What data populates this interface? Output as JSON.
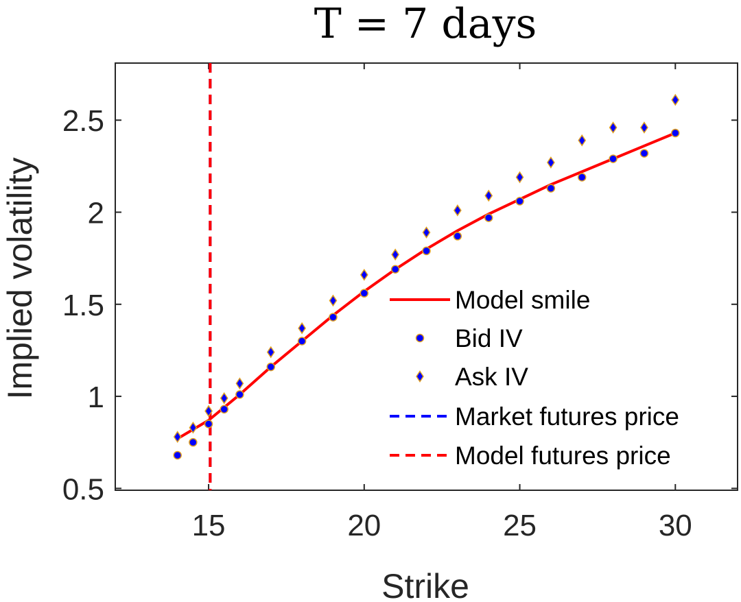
{
  "chart_data": {
    "type": "scatter",
    "title": "T = 7 days",
    "xlabel": "Strike",
    "ylabel": "Implied volatility",
    "xlim": [
      12,
      32
    ],
    "ylim": [
      0.49,
      2.81
    ],
    "xticks": [
      15,
      20,
      25,
      30
    ],
    "yticks": [
      0.5,
      1,
      1.5,
      2,
      2.5
    ],
    "xtick_labels": [
      "15",
      "20",
      "25",
      "30"
    ],
    "ytick_labels": [
      "0.5",
      "1",
      "1.5",
      "2",
      "2.5"
    ],
    "grid": false,
    "legend_position": "lower-right",
    "colors": {
      "model_smile": "#ff0000",
      "marker_fill": "#0000ff",
      "marker_edge": "#e0a020",
      "market_futures": "#0000ff",
      "model_futures": "#ff0000",
      "axes": "#262626"
    },
    "series": [
      {
        "name": "Model smile",
        "kind": "line",
        "x": [
          14,
          14.5,
          15,
          15.5,
          16,
          17,
          18,
          19,
          20,
          21,
          22,
          23,
          24,
          25,
          26,
          27,
          28,
          29,
          30
        ],
        "y": [
          0.77,
          0.82,
          0.87,
          0.94,
          1.01,
          1.16,
          1.3,
          1.44,
          1.57,
          1.69,
          1.8,
          1.9,
          1.99,
          2.07,
          2.15,
          2.22,
          2.29,
          2.36,
          2.43
        ]
      },
      {
        "name": "Bid IV",
        "kind": "marker-circle",
        "x": [
          14,
          14.5,
          15,
          15.5,
          16,
          17,
          18,
          19,
          20,
          21,
          22,
          23,
          24,
          25,
          26,
          27,
          28,
          29,
          30
        ],
        "y": [
          0.68,
          0.75,
          0.85,
          0.93,
          1.01,
          1.16,
          1.3,
          1.43,
          1.56,
          1.69,
          1.79,
          1.87,
          1.97,
          2.06,
          2.13,
          2.19,
          2.29,
          2.32,
          2.43
        ]
      },
      {
        "name": "Ask IV",
        "kind": "marker-diamond",
        "x": [
          14,
          14.5,
          15,
          15.5,
          16,
          17,
          18,
          19,
          20,
          21,
          22,
          23,
          24,
          25,
          26,
          27,
          28,
          29,
          30
        ],
        "y": [
          0.78,
          0.83,
          0.92,
          0.99,
          1.07,
          1.24,
          1.37,
          1.52,
          1.66,
          1.77,
          1.89,
          2.01,
          2.09,
          2.19,
          2.27,
          2.39,
          2.46,
          2.46,
          2.61
        ]
      },
      {
        "name": "Market futures price",
        "kind": "vline-dashed",
        "x": 15.05
      },
      {
        "name": "Model futures price",
        "kind": "vline-dashed",
        "x": 15.05
      }
    ]
  }
}
